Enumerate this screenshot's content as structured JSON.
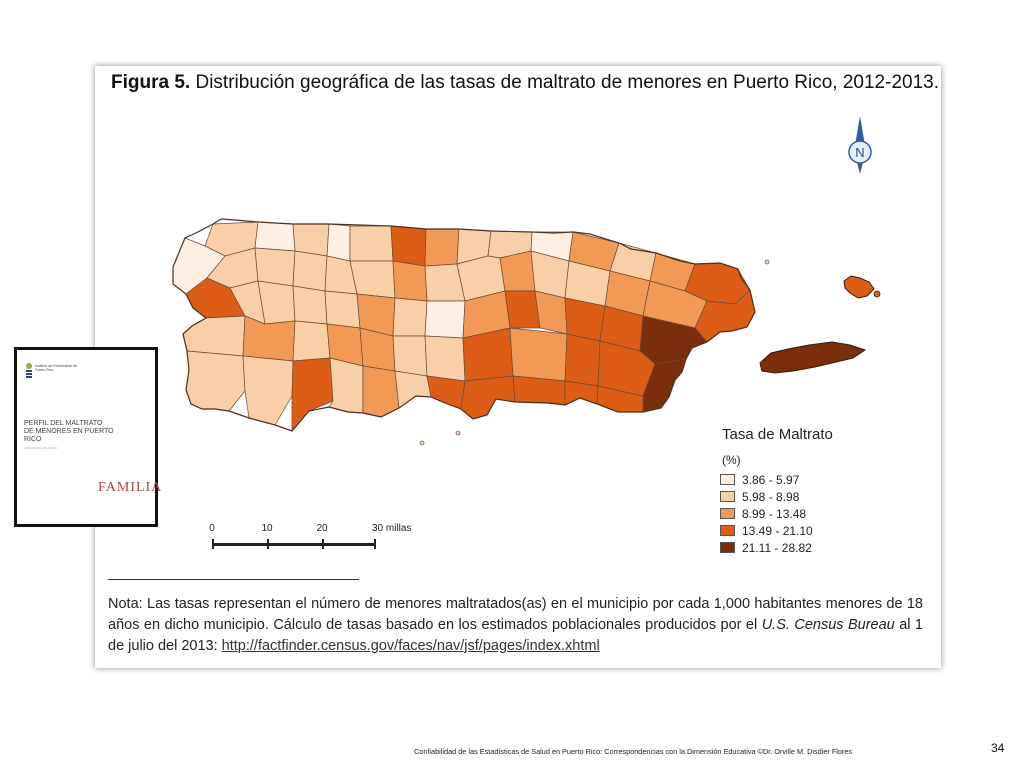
{
  "figure": {
    "title_prefix": "Figura 5.",
    "title_text": " Distribución geográfica de las tasas de maltrato de menores en Puerto Rico, 2012-2013."
  },
  "compass": {
    "label": "N",
    "icon": "north-arrow-icon"
  },
  "legend": {
    "title": "Tasa de Maltrato",
    "unit": "(%)",
    "classes": [
      {
        "label": "3.86 - 5.97",
        "color": "#fdf0e2"
      },
      {
        "label": "5.98 - 8.98",
        "color": "#f9cfa7"
      },
      {
        "label": "8.99 - 13.48",
        "color": "#f29a55"
      },
      {
        "label": "13.49 - 21.10",
        "color": "#dd5c16"
      },
      {
        "label": "21.11 - 28.82",
        "color": "#7a2e0b"
      }
    ]
  },
  "scale_bar": {
    "labels": [
      "0",
      "10",
      "20",
      "30 millas"
    ]
  },
  "note": {
    "part1": "Nota: Las tasas representan el número de menores maltratados(as) en el municipio por cada 1,000 habitantes menores de 18 años en dicho municipio. Cálculo de tasas basado en los estimados poblacionales producidos por el ",
    "italic": "U.S. Census Bureau",
    "part2": " al 1 de julio del 2013:  ",
    "link": "http://factfinder.census.gov/faces/nav/jsf/pages/index.xhtml"
  },
  "report_cover": {
    "logo_text": "Instituto de Estadísticas de Puerto Rico",
    "title": "PERFIL DEL MALTRATO DE MENORES EN PUERTO RICO",
    "subtitle": "AÑO FISCAL 2012-2013",
    "brand": "FAMILIA"
  },
  "footer": {
    "text": "Confiabilidad de las Estadísticas de Salud en Puerto Rico: Correspondencias con la Dimensión Educativa ©Dr. Orville M. Disdier Flores",
    "page": "34"
  }
}
